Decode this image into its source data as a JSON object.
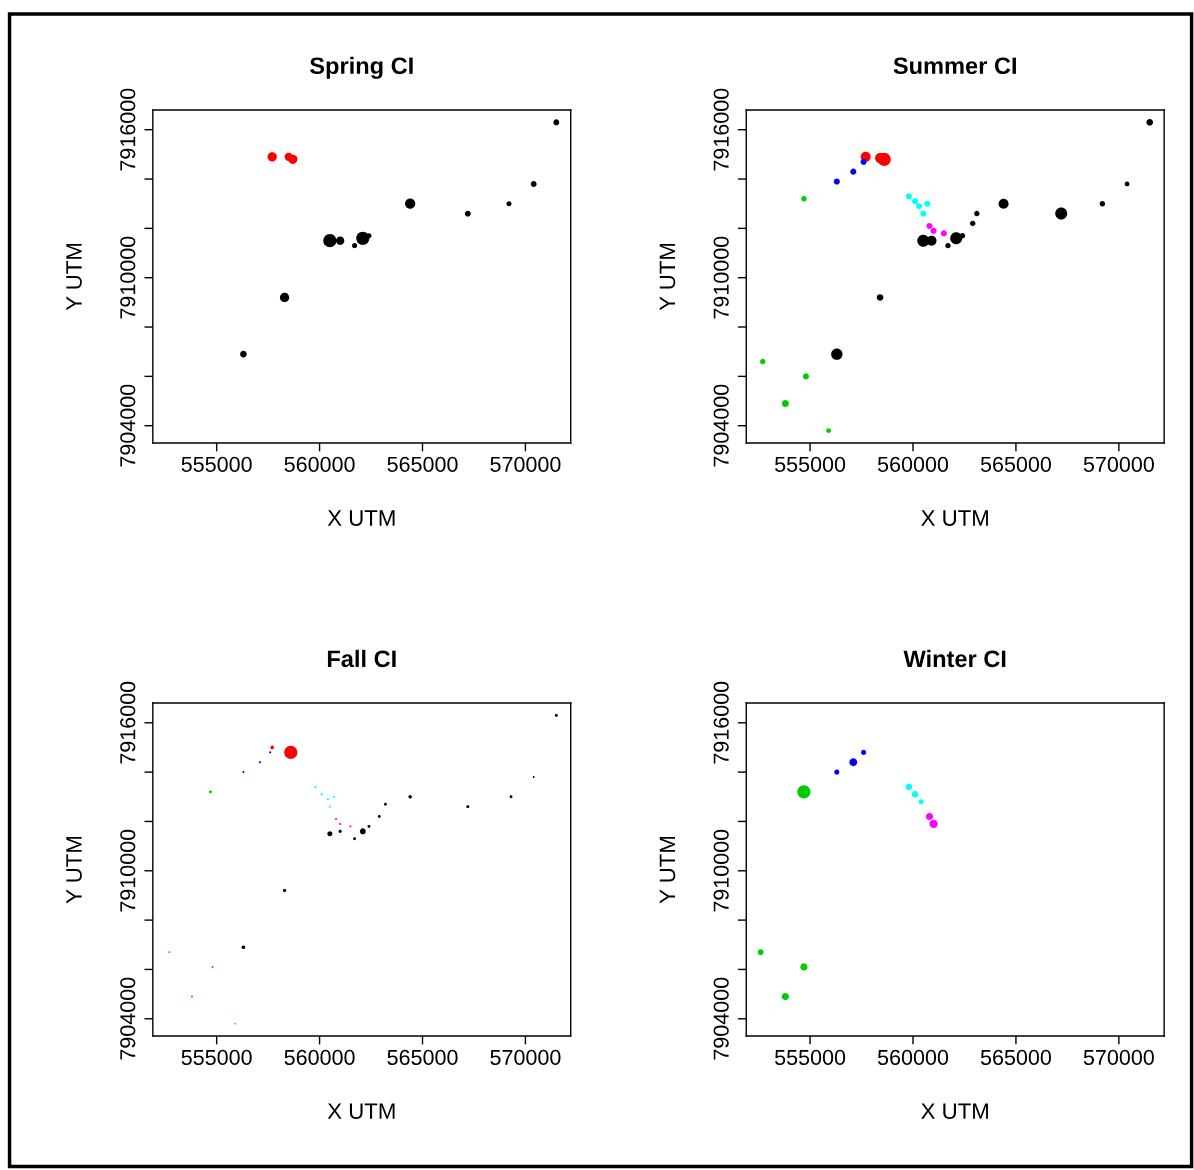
{
  "chart_data": [
    {
      "type": "bubble",
      "title": "Spring CI",
      "xlabel": "X UTM",
      "ylabel": "Y UTM",
      "xlim": [
        551900,
        572200
      ],
      "ylim": [
        7903300,
        7916800
      ],
      "xticks": [
        555000,
        560000,
        565000,
        570000
      ],
      "yticks": [
        7904000,
        {
          "value": 7906000,
          "label": null
        },
        {
          "value": 7908000,
          "label": null
        },
        7910000,
        {
          "value": 7912000,
          "label": null
        },
        {
          "value": 7914000,
          "label": null
        },
        7916000
      ],
      "grid": false,
      "marker": "circle",
      "series": [
        {
          "color": "#000000",
          "x": [
            571500,
            570400,
            569200,
            567200,
            564400,
            560500,
            561000,
            561700,
            562100,
            562400,
            558300,
            556300
          ],
          "values": [
            7916300,
            7913800,
            7913000,
            7912600,
            7913000,
            7911500,
            7911500,
            7911300,
            7911600,
            7911700,
            7909200,
            7906900
          ],
          "sizes": [
            0.2,
            0.2,
            0.15,
            0.2,
            0.6,
            1,
            0.4,
            0.15,
            1,
            0.15,
            0.5,
            0.25
          ]
        },
        {
          "color": "#ff0000",
          "x": [
            557700,
            558500,
            558700
          ],
          "values": [
            7914900,
            7914900,
            7914800
          ],
          "sizes": [
            0.5,
            0.4,
            0.5
          ]
        }
      ]
    },
    {
      "type": "bubble",
      "title": "Summer CI",
      "xlabel": "X UTM",
      "ylabel": "Y UTM",
      "xlim": [
        551900,
        572200
      ],
      "ylim": [
        7903300,
        7916800
      ],
      "xticks": [
        555000,
        560000,
        565000,
        570000
      ],
      "yticks": [
        7904000,
        {
          "value": 7906000,
          "label": null
        },
        {
          "value": 7908000,
          "label": null
        },
        7910000,
        {
          "value": 7912000,
          "label": null
        },
        {
          "value": 7914000,
          "label": null
        },
        7916000
      ],
      "grid": false,
      "marker": "circle",
      "series": [
        {
          "color": "#000000",
          "x": [
            571500,
            570400,
            569200,
            567200,
            564400,
            563100,
            562900,
            562400,
            562100,
            561700,
            560900,
            560500,
            558400,
            556300
          ],
          "values": [
            7916300,
            7913800,
            7913000,
            7912600,
            7913000,
            7912600,
            7912200,
            7911700,
            7911600,
            7911300,
            7911500,
            7911500,
            7909200,
            7906900
          ],
          "sizes": [
            0.25,
            0.13,
            0.17,
            0.83,
            0.58,
            0.17,
            0.17,
            0.17,
            0.83,
            0.17,
            0.58,
            0.83,
            0.25,
            0.75
          ]
        },
        {
          "color": "#ff0000",
          "x": [
            557700,
            558400,
            558600
          ],
          "values": [
            7914900,
            7914850,
            7914800
          ],
          "sizes": [
            0.58,
            0.58,
            1
          ]
        },
        {
          "color": "#0000ff",
          "x": [
            557600,
            557100,
            556300
          ],
          "values": [
            7914700,
            7914300,
            7913900
          ],
          "sizes": [
            0.21,
            0.21,
            0.21
          ]
        },
        {
          "color": "#00cd00",
          "x": [
            554700,
            552700,
            554800,
            553800,
            555900
          ],
          "values": [
            7913200,
            7906600,
            7906000,
            7904900,
            7903800
          ],
          "sizes": [
            0.17,
            0.17,
            0.21,
            0.29,
            0.13
          ]
        },
        {
          "color": "#00ffff",
          "x": [
            559800,
            560100,
            560300,
            560700,
            560500
          ],
          "values": [
            7913300,
            7913100,
            7912900,
            7913000,
            7912600
          ],
          "sizes": [
            0.21,
            0.21,
            0.21,
            0.21,
            0.21
          ]
        },
        {
          "color": "#ff00ff",
          "x": [
            560800,
            561000,
            561500
          ],
          "values": [
            7912100,
            7911900,
            7911800
          ],
          "sizes": [
            0.21,
            0.21,
            0.21
          ]
        }
      ]
    },
    {
      "type": "bubble",
      "title": "Fall CI",
      "xlabel": "X UTM",
      "ylabel": "Y UTM",
      "xlim": [
        551900,
        572200
      ],
      "ylim": [
        7903300,
        7916800
      ],
      "xticks": [
        555000,
        560000,
        565000,
        570000
      ],
      "yticks": [
        7904000,
        {
          "value": 7906000,
          "label": null
        },
        {
          "value": 7908000,
          "label": null
        },
        7910000,
        {
          "value": 7912000,
          "label": null
        },
        {
          "value": 7914000,
          "label": null
        },
        7916000
      ],
      "grid": false,
      "marker": "circle",
      "series": [
        {
          "color": "#000000",
          "x": [
            571500,
            570400,
            569300,
            567200,
            564400,
            563200,
            562900,
            562400,
            562100,
            561700,
            561000,
            560500,
            558300,
            556300
          ],
          "values": [
            7916300,
            7913800,
            7913000,
            7912600,
            7913000,
            7912700,
            7912200,
            7911800,
            7911600,
            7911300,
            7911600,
            7911500,
            7909200,
            7906900
          ],
          "sizes": [
            0.05,
            0.02,
            0.05,
            0.05,
            0.07,
            0.05,
            0.05,
            0.05,
            0.2,
            0.05,
            0.06,
            0.15,
            0.06,
            0.08
          ]
        },
        {
          "color": "#ff0000",
          "x": [
            557700,
            558600
          ],
          "values": [
            7915000,
            7914800
          ],
          "sizes": [
            0.08,
            1
          ]
        },
        {
          "color": "#0000ff",
          "x": [
            557600,
            557100,
            556300
          ],
          "values": [
            7914800,
            7914400,
            7914000
          ],
          "sizes": [
            0.025,
            0.025,
            0.025
          ]
        },
        {
          "color": "#00cd00",
          "x": [
            554700,
            552700,
            554800,
            553800,
            555900
          ],
          "values": [
            7913200,
            7906700,
            7906100,
            7904900,
            7903800
          ],
          "sizes": [
            0.05,
            0.02,
            0.025,
            0.025,
            0.015
          ]
        },
        {
          "color": "#00ffff",
          "x": [
            559800,
            560100,
            560400,
            560700,
            560500
          ],
          "values": [
            7913400,
            7913100,
            7912900,
            7913000,
            7912600
          ],
          "sizes": [
            0.025,
            0.025,
            0.025,
            0.025,
            0.025
          ]
        },
        {
          "color": "#ff00ff",
          "x": [
            560800,
            561000,
            561500
          ],
          "values": [
            7912100,
            7911900,
            7911800
          ],
          "sizes": [
            0.025,
            0.025,
            0.025
          ]
        }
      ]
    },
    {
      "type": "bubble",
      "title": "Winter CI",
      "xlabel": "X UTM",
      "ylabel": "Y UTM",
      "xlim": [
        551900,
        572200
      ],
      "ylim": [
        7903300,
        7916800
      ],
      "xticks": [
        555000,
        560000,
        565000,
        570000
      ],
      "yticks": [
        7904000,
        {
          "value": 7906000,
          "label": null
        },
        {
          "value": 7908000,
          "label": null
        },
        7910000,
        {
          "value": 7912000,
          "label": null
        },
        {
          "value": 7914000,
          "label": null
        },
        7916000
      ],
      "grid": false,
      "marker": "circle",
      "series": [
        {
          "color": "#0000ff",
          "x": [
            557600,
            557100,
            556300
          ],
          "values": [
            7914800,
            7914400,
            7914000
          ],
          "sizes": [
            0.15,
            0.35,
            0.15
          ]
        },
        {
          "color": "#00cd00",
          "x": [
            554700,
            552600,
            554700,
            553800
          ],
          "values": [
            7913200,
            7906700,
            7906100,
            7904900
          ],
          "sizes": [
            1,
            0.2,
            0.3,
            0.3
          ]
        },
        {
          "color": "#00ffff",
          "x": [
            559800,
            560100,
            560400
          ],
          "values": [
            7913400,
            7913100,
            7912800
          ],
          "sizes": [
            0.25,
            0.25,
            0.15
          ]
        },
        {
          "color": "#ff00ff",
          "x": [
            560800,
            561000
          ],
          "values": [
            7912200,
            7911900
          ],
          "sizes": [
            0.3,
            0.4
          ]
        }
      ]
    }
  ]
}
